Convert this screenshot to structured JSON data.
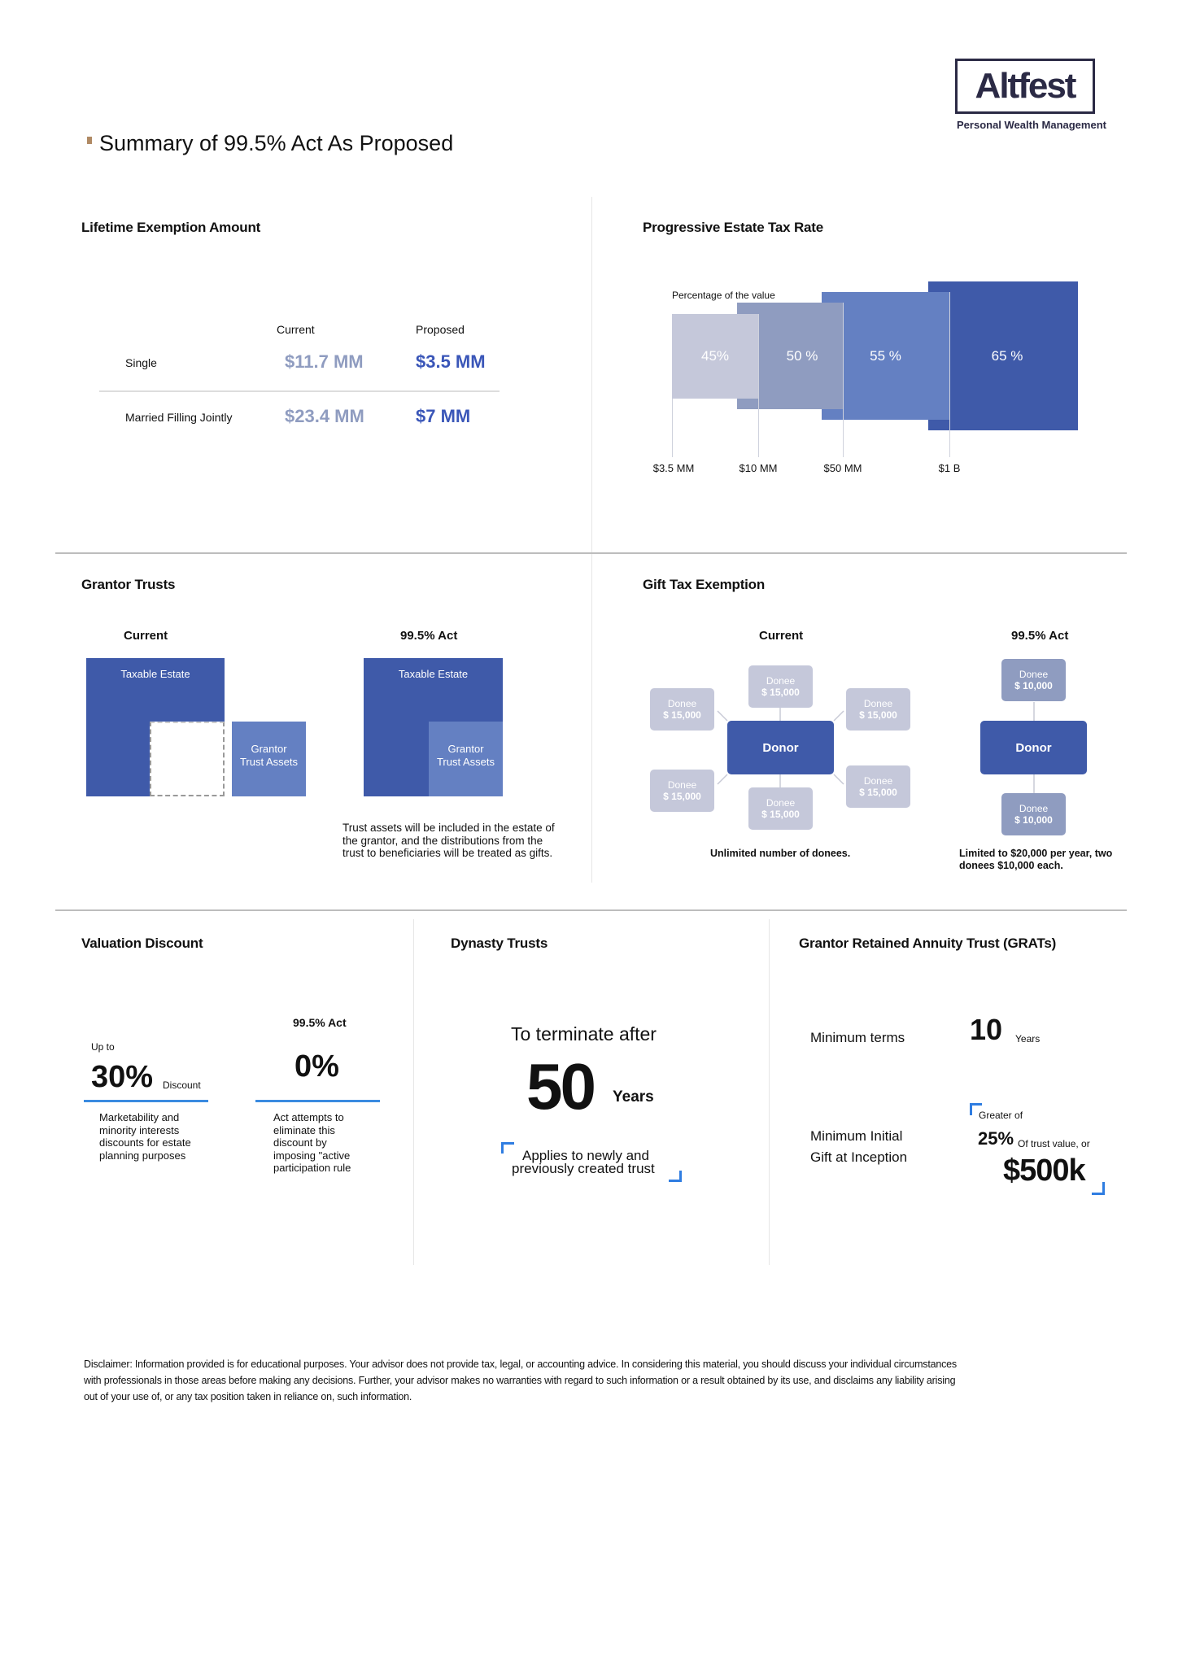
{
  "header": {
    "title": "Summary of 99.5% Act As Proposed",
    "logo": {
      "name": "Altfest",
      "tagline": "Personal Wealth Management"
    },
    "bullet_color": "#b08a64"
  },
  "lifetime": {
    "title": "Lifetime Exemption Amount",
    "col_current": "Current",
    "col_proposed": "Proposed",
    "rows": [
      {
        "label": "Single",
        "current": "$11.7 MM",
        "proposed": "$3.5 MM"
      },
      {
        "label": "Married Filling Jointly",
        "current": "$23.4 MM",
        "proposed": "$7 MM"
      }
    ],
    "colors": {
      "current": "#8f9cc0",
      "proposed": "#3a56b8"
    }
  },
  "estate_tax": {
    "title": "Progressive Estate Tax Rate",
    "caption": "Percentage of the value",
    "bars": [
      {
        "label": "45%",
        "threshold": "$3.5 MM",
        "color": "#c5c8da"
      },
      {
        "label": "50 %",
        "threshold": "$10 MM",
        "color": "#8f9cc0"
      },
      {
        "label": "55 %",
        "threshold": "$50 MM",
        "color": "#6480c2"
      },
      {
        "label": "65 %",
        "threshold": "$1 B",
        "color": "#3f5aa9"
      }
    ]
  },
  "grantor": {
    "title": "Grantor Trusts",
    "current": "Current",
    "act": "99.5% Act",
    "taxable": "Taxable Estate",
    "assets_1": "Grantor",
    "assets_2": "Trust Assets",
    "note": "Trust assets will be included in the estate of the grantor, and the distributions from the trust to beneficiaries will be treated as gifts."
  },
  "gift": {
    "title": "Gift Tax Exemption",
    "current": "Current",
    "act": "99.5% Act",
    "donor": "Donor",
    "donee": "Donee",
    "current_amount": "$ 15,000",
    "act_amount": "$ 10,000",
    "current_note": "Unlimited number of donees.",
    "act_note": "Limited to $20,000 per year, two donees $10,000 each."
  },
  "valuation": {
    "title": "Valuation Discount",
    "up_to": "Up to",
    "pct": "30%",
    "discount": "Discount",
    "current_note": "Marketability and minority interests discounts for estate planning purposes",
    "act": "99.5% Act",
    "act_pct": "0%",
    "act_note": "Act attempts to eliminate this discount by imposing \"active participation rule"
  },
  "dynasty": {
    "title": "Dynasty Trusts",
    "lead": "To terminate after",
    "value": "50",
    "unit": "Years",
    "note_1": "Applies to newly and",
    "note_2": "previously created trust"
  },
  "grat": {
    "title": "Grantor Retained Annuity Trust (GRATs)",
    "terms_label": "Minimum terms",
    "terms_value": "10",
    "terms_unit": "Years",
    "gift_label_1": "Minimum Initial",
    "gift_label_2": "Gift at Inception",
    "greater": "Greater of",
    "pct": "25%",
    "pct_note": "Of trust value, or",
    "amount": "$500k"
  },
  "disclaimer": "Disclaimer: Information provided is for educational purposes. Your advisor does not provide tax, legal, or accounting advice. In considering this material, you should discuss your individual circumstances with professionals in those areas before making any decisions. Further, your advisor makes no warranties with regard to such information or a result obtained by its use, and disclaims any liability arising out of your use of, or any tax position taken in reliance on, such information."
}
